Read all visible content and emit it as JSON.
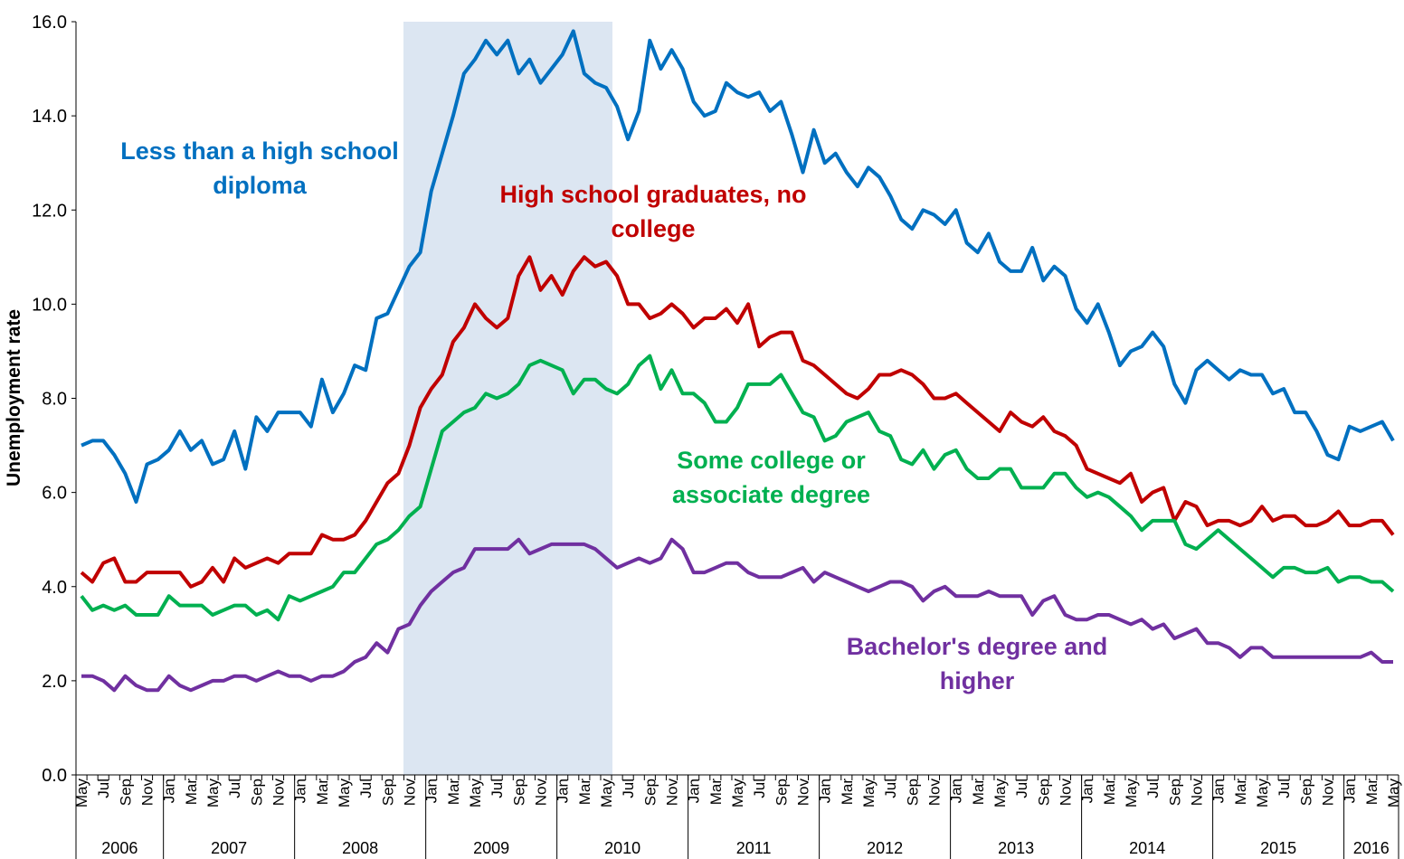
{
  "chart_data": {
    "type": "line",
    "y_label": "Unemployment rate",
    "ylim": [
      0,
      16
    ],
    "yticks": [
      {
        "value": 0,
        "label": "0.0"
      },
      {
        "value": 2,
        "label": "2.0"
      },
      {
        "value": 4,
        "label": "4.0"
      },
      {
        "value": 6,
        "label": "6.0"
      },
      {
        "value": 8,
        "label": "8.0"
      },
      {
        "value": 10,
        "label": "10.0"
      },
      {
        "value": 12,
        "label": "12.0"
      },
      {
        "value": 14,
        "label": "14.0"
      },
      {
        "value": 16,
        "label": "16.0"
      }
    ],
    "categories": [
      "May",
      null,
      "Jul",
      null,
      "Sep",
      null,
      "Nov",
      null,
      "Jan",
      null,
      "Mar",
      null,
      "May",
      null,
      "Jul",
      null,
      "Sep",
      null,
      "Nov",
      null,
      "Jan",
      null,
      "Mar",
      null,
      "May",
      null,
      "Jul",
      null,
      "Sep",
      null,
      "Nov",
      null,
      "Jan",
      null,
      "Mar",
      null,
      "May",
      null,
      "Jul",
      null,
      "Sep",
      null,
      "Nov",
      null,
      "Jan",
      null,
      "Mar",
      null,
      "May",
      null,
      "Jul",
      null,
      "Sep",
      null,
      "Nov",
      null,
      "Jan",
      null,
      "Mar",
      null,
      "May",
      null,
      "Jul",
      null,
      "Sep",
      null,
      "Nov",
      null,
      "Jan",
      null,
      "Mar",
      null,
      "May",
      null,
      "Jul",
      null,
      "Sep",
      null,
      "Nov",
      null,
      "Jan",
      null,
      "Mar",
      null,
      "May",
      null,
      "Jul",
      null,
      "Sep",
      null,
      "Nov",
      null,
      "Jan",
      null,
      "Mar",
      null,
      "May",
      null,
      "Jul",
      null,
      "Sep",
      null,
      "Nov",
      null,
      "Jan",
      null,
      "Mar",
      null,
      "May",
      null,
      "Jul",
      null,
      "Sep",
      null,
      "Nov",
      null,
      "Jan",
      null,
      "Mar",
      null,
      "May"
    ],
    "x_groups": [
      {
        "label": "2006",
        "size": 8
      },
      {
        "label": "2007",
        "size": 12
      },
      {
        "label": "2008",
        "size": 12
      },
      {
        "label": "2009",
        "size": 12
      },
      {
        "label": "2010",
        "size": 12
      },
      {
        "label": "2011",
        "size": 12
      },
      {
        "label": "2012",
        "size": 12
      },
      {
        "label": "2013",
        "size": 12
      },
      {
        "label": "2014",
        "size": 12
      },
      {
        "label": "2015",
        "size": 12
      },
      {
        "label": "2016",
        "size": 5
      }
    ],
    "series": [
      {
        "name": "Less than a high school diploma",
        "color": "#0070c0",
        "values": [
          7.0,
          7.1,
          7.1,
          6.8,
          6.4,
          5.8,
          6.6,
          6.7,
          6.9,
          7.3,
          6.9,
          7.1,
          6.6,
          6.7,
          7.3,
          6.5,
          7.6,
          7.3,
          7.7,
          7.7,
          7.7,
          7.4,
          8.4,
          7.7,
          8.1,
          8.7,
          8.6,
          9.7,
          9.8,
          10.3,
          10.8,
          11.1,
          12.4,
          13.2,
          14.0,
          14.9,
          15.2,
          15.6,
          15.3,
          15.6,
          14.9,
          15.2,
          14.7,
          15.0,
          15.3,
          15.8,
          14.9,
          14.7,
          14.6,
          14.2,
          13.5,
          14.1,
          15.6,
          15.0,
          15.4,
          15.0,
          14.3,
          14.0,
          14.1,
          14.7,
          14.5,
          14.4,
          14.5,
          14.1,
          14.3,
          13.6,
          12.8,
          13.7,
          13.0,
          13.2,
          12.8,
          12.5,
          12.9,
          12.7,
          12.3,
          11.8,
          11.6,
          12.0,
          11.9,
          11.7,
          12.0,
          11.3,
          11.1,
          11.5,
          10.9,
          10.7,
          10.7,
          11.2,
          10.5,
          10.8,
          10.6,
          9.9,
          9.6,
          10.0,
          9.4,
          8.7,
          9.0,
          9.1,
          9.4,
          9.1,
          8.3,
          7.9,
          8.6,
          8.8,
          8.6,
          8.4,
          8.6,
          8.5,
          8.5,
          8.1,
          8.2,
          7.7,
          7.7,
          7.3,
          6.8,
          6.7,
          7.4,
          7.3,
          7.4,
          7.5,
          7.1
        ]
      },
      {
        "name": "High school graduates, no college",
        "color": "#c00000",
        "values": [
          4.3,
          4.1,
          4.5,
          4.6,
          4.1,
          4.1,
          4.3,
          4.3,
          4.3,
          4.3,
          4.0,
          4.1,
          4.4,
          4.1,
          4.6,
          4.4,
          4.5,
          4.6,
          4.5,
          4.7,
          4.7,
          4.7,
          5.1,
          5.0,
          5.0,
          5.1,
          5.4,
          5.8,
          6.2,
          6.4,
          7.0,
          7.8,
          8.2,
          8.5,
          9.2,
          9.5,
          10.0,
          9.7,
          9.5,
          9.7,
          10.6,
          11.0,
          10.3,
          10.6,
          10.2,
          10.7,
          11.0,
          10.8,
          10.9,
          10.6,
          10.0,
          10.0,
          9.7,
          9.8,
          10.0,
          9.8,
          9.5,
          9.7,
          9.7,
          9.9,
          9.6,
          10.0,
          9.1,
          9.3,
          9.4,
          9.4,
          8.8,
          8.7,
          8.5,
          8.3,
          8.1,
          8.0,
          8.2,
          8.5,
          8.5,
          8.6,
          8.5,
          8.3,
          8.0,
          8.0,
          8.1,
          7.9,
          7.7,
          7.5,
          7.3,
          7.7,
          7.5,
          7.4,
          7.6,
          7.3,
          7.2,
          7.0,
          6.5,
          6.4,
          6.3,
          6.2,
          6.4,
          5.8,
          6.0,
          6.1,
          5.4,
          5.8,
          5.7,
          5.3,
          5.4,
          5.4,
          5.3,
          5.4,
          5.7,
          5.4,
          5.5,
          5.5,
          5.3,
          5.3,
          5.4,
          5.6,
          5.3,
          5.3,
          5.4,
          5.4,
          5.1
        ]
      },
      {
        "name": "Some college or associate degree",
        "color": "#00b050",
        "values": [
          3.8,
          3.5,
          3.6,
          3.5,
          3.6,
          3.4,
          3.4,
          3.4,
          3.8,
          3.6,
          3.6,
          3.6,
          3.4,
          3.5,
          3.6,
          3.6,
          3.4,
          3.5,
          3.3,
          3.8,
          3.7,
          3.8,
          3.9,
          4.0,
          4.3,
          4.3,
          4.6,
          4.9,
          5.0,
          5.2,
          5.5,
          5.7,
          6.5,
          7.3,
          7.5,
          7.7,
          7.8,
          8.1,
          8.0,
          8.1,
          8.3,
          8.7,
          8.8,
          8.7,
          8.6,
          8.1,
          8.4,
          8.4,
          8.2,
          8.1,
          8.3,
          8.7,
          8.9,
          8.2,
          8.6,
          8.1,
          8.1,
          7.9,
          7.5,
          7.5,
          7.8,
          8.3,
          8.3,
          8.3,
          8.5,
          8.1,
          7.7,
          7.6,
          7.1,
          7.2,
          7.5,
          7.6,
          7.7,
          7.3,
          7.2,
          6.7,
          6.6,
          6.9,
          6.5,
          6.8,
          6.9,
          6.5,
          6.3,
          6.3,
          6.5,
          6.5,
          6.1,
          6.1,
          6.1,
          6.4,
          6.4,
          6.1,
          5.9,
          6.0,
          5.9,
          5.7,
          5.5,
          5.2,
          5.4,
          5.4,
          5.4,
          4.9,
          4.8,
          5.0,
          5.2,
          5.0,
          4.8,
          4.6,
          4.4,
          4.2,
          4.4,
          4.4,
          4.3,
          4.3,
          4.4,
          4.1,
          4.2,
          4.2,
          4.1,
          4.1,
          3.9
        ]
      },
      {
        "name": "Bachelor's degree and higher",
        "color": "#7030a0",
        "values": [
          2.1,
          2.1,
          2.0,
          1.8,
          2.1,
          1.9,
          1.8,
          1.8,
          2.1,
          1.9,
          1.8,
          1.9,
          2.0,
          2.0,
          2.1,
          2.1,
          2.0,
          2.1,
          2.2,
          2.1,
          2.1,
          2.0,
          2.1,
          2.1,
          2.2,
          2.4,
          2.5,
          2.8,
          2.6,
          3.1,
          3.2,
          3.6,
          3.9,
          4.1,
          4.3,
          4.4,
          4.8,
          4.8,
          4.8,
          4.8,
          5.0,
          4.7,
          4.8,
          4.9,
          4.9,
          4.9,
          4.9,
          4.8,
          4.6,
          4.4,
          4.5,
          4.6,
          4.5,
          4.6,
          5.0,
          4.8,
          4.3,
          4.3,
          4.4,
          4.5,
          4.5,
          4.3,
          4.2,
          4.2,
          4.2,
          4.3,
          4.4,
          4.1,
          4.3,
          4.2,
          4.1,
          4.0,
          3.9,
          4.0,
          4.1,
          4.1,
          4.0,
          3.7,
          3.9,
          4.0,
          3.8,
          3.8,
          3.8,
          3.9,
          3.8,
          3.8,
          3.8,
          3.4,
          3.7,
          3.8,
          3.4,
          3.3,
          3.3,
          3.4,
          3.4,
          3.3,
          3.2,
          3.3,
          3.1,
          3.2,
          2.9,
          3.0,
          3.1,
          2.8,
          2.8,
          2.7,
          2.5,
          2.7,
          2.7,
          2.5,
          2.5,
          2.5,
          2.5,
          2.5,
          2.5,
          2.5,
          2.5,
          2.5,
          2.6,
          2.4,
          2.4
        ]
      }
    ]
  }
}
